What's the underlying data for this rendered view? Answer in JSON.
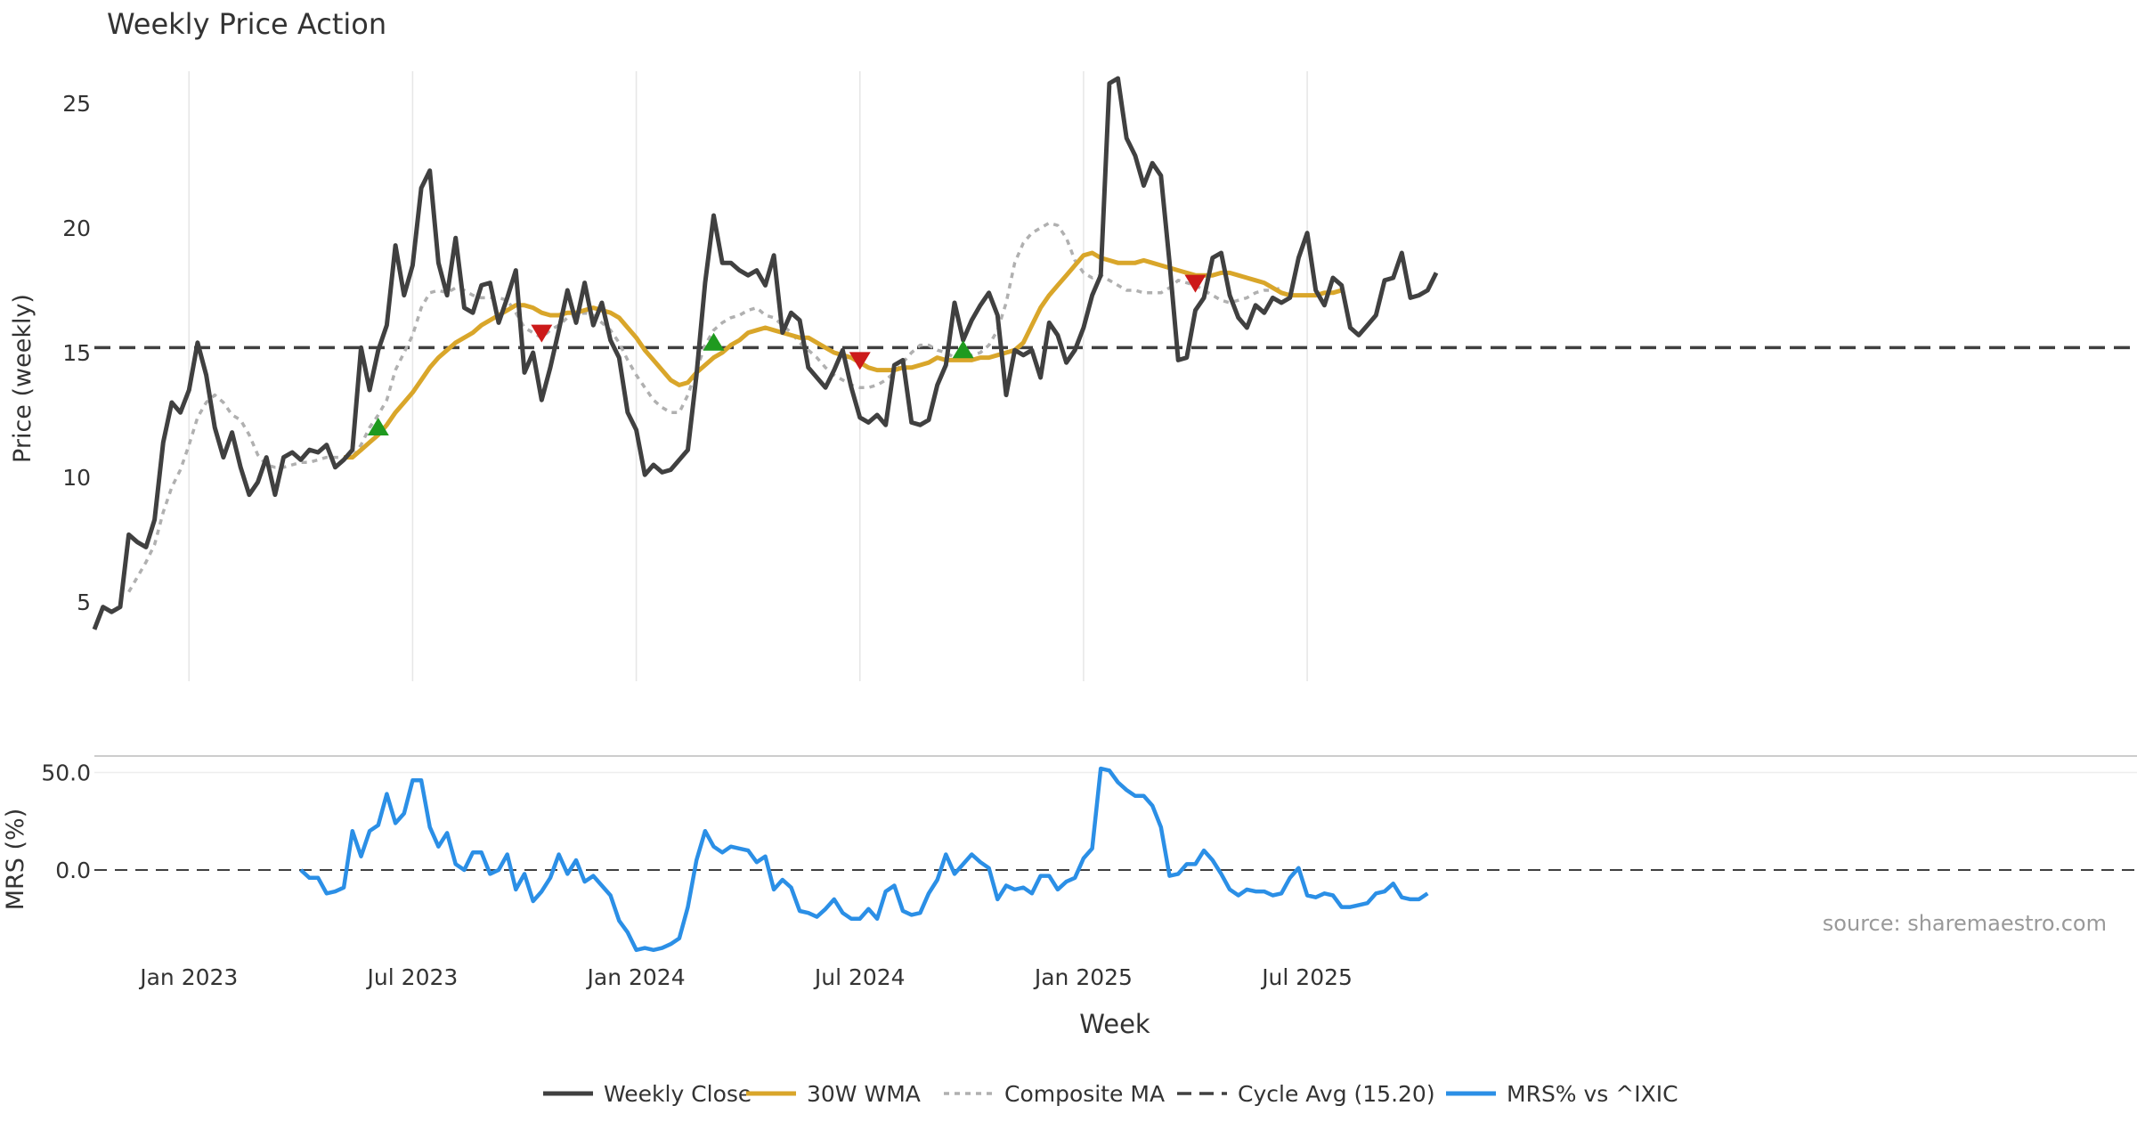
{
  "chart_data": [
    {
      "type": "line",
      "title": "Weekly Price Action",
      "xlabel": "",
      "ylabel": "Price (weekly)",
      "ylim": [
        3,
        27
      ],
      "yticks": [
        5,
        10,
        15,
        20,
        25
      ],
      "x_start": "2022-10-17",
      "x_step_days": 7,
      "series": [
        {
          "name": "Weekly Close",
          "color": "#404040",
          "style": "solid",
          "values": [
            3.9,
            4.8,
            4.6,
            4.8,
            7.7,
            7.4,
            7.2,
            8.3,
            11.4,
            13.0,
            12.6,
            13.5,
            15.4,
            14.1,
            12.0,
            10.8,
            11.8,
            10.4,
            9.3,
            9.8,
            10.8,
            9.3,
            10.8,
            11.0,
            10.7,
            11.1,
            11.0,
            11.3,
            10.4,
            10.7,
            11.1,
            15.2,
            13.5,
            15.1,
            16.1,
            19.3,
            17.3,
            18.5,
            21.6,
            22.3,
            18.6,
            17.3,
            19.6,
            16.8,
            16.6,
            17.7,
            17.8,
            16.2,
            17.2,
            18.3,
            14.2,
            15.0,
            13.1,
            14.4,
            15.9,
            17.5,
            16.2,
            17.8,
            16.1,
            17.0,
            15.5,
            14.8,
            12.6,
            11.9,
            10.1,
            10.5,
            10.2,
            10.3,
            10.7,
            11.1,
            14.1,
            17.8,
            20.5,
            18.6,
            18.6,
            18.3,
            18.1,
            18.3,
            17.7,
            18.9,
            15.8,
            16.6,
            16.3,
            14.4,
            14.0,
            13.6,
            14.3,
            15.1,
            13.6,
            12.4,
            12.2,
            12.5,
            12.1,
            14.5,
            14.7,
            12.2,
            12.1,
            12.3,
            13.7,
            14.5,
            17.0,
            15.5,
            16.3,
            16.9,
            17.4,
            16.5,
            13.3,
            15.1,
            14.9,
            15.1,
            14.0,
            16.2,
            15.7,
            14.6,
            15.1,
            16.0,
            17.3,
            18.1,
            25.8,
            26.0,
            23.6,
            22.9,
            21.7,
            22.6,
            22.1,
            18.6,
            14.7,
            14.8,
            16.7,
            17.2,
            18.8,
            19.0,
            17.3,
            16.4,
            16.0,
            16.9,
            16.6,
            17.2,
            17.0,
            17.2,
            18.8,
            19.8,
            17.5,
            16.9,
            18.0,
            17.7,
            16.0,
            15.7,
            16.1,
            16.5,
            17.9,
            18.0,
            19.0,
            17.2,
            17.3,
            17.5,
            18.2
          ]
        },
        {
          "name": "30W WMA",
          "color": "#d9a62a",
          "style": "solid",
          "start_index": 29,
          "values": [
            10.8,
            10.8,
            11.1,
            11.4,
            11.7,
            12.1,
            12.6,
            13.0,
            13.4,
            13.9,
            14.4,
            14.8,
            15.1,
            15.4,
            15.6,
            15.8,
            16.1,
            16.3,
            16.5,
            16.7,
            16.9,
            16.9,
            16.8,
            16.6,
            16.5,
            16.5,
            16.6,
            16.6,
            16.7,
            16.8,
            16.7,
            16.6,
            16.4,
            16.0,
            15.6,
            15.1,
            14.7,
            14.3,
            13.9,
            13.7,
            13.8,
            14.2,
            14.5,
            14.8,
            15.0,
            15.3,
            15.5,
            15.8,
            15.9,
            16.0,
            15.9,
            15.8,
            15.7,
            15.6,
            15.6,
            15.4,
            15.2,
            15.0,
            14.9,
            14.8,
            14.6,
            14.4,
            14.3,
            14.3,
            14.3,
            14.4,
            14.4,
            14.5,
            14.6,
            14.8,
            14.7,
            14.7,
            14.7,
            14.7,
            14.8,
            14.8,
            14.9,
            15.0,
            15.1,
            15.4,
            16.1,
            16.8,
            17.3,
            17.7,
            18.1,
            18.5,
            18.9,
            19.0,
            18.8,
            18.7,
            18.6,
            18.6,
            18.6,
            18.7,
            18.6,
            18.5,
            18.4,
            18.3,
            18.2,
            18.1,
            18.1,
            18.1,
            18.2,
            18.2,
            18.1,
            18.0,
            17.9,
            17.8,
            17.6,
            17.4,
            17.3,
            17.3,
            17.3,
            17.3,
            17.4,
            17.4,
            17.5
          ]
        },
        {
          "name": "Composite MA",
          "color": "#b0b0b0",
          "style": "dotted",
          "start_index": 4,
          "values": [
            5.4,
            6.0,
            6.6,
            7.3,
            8.6,
            9.6,
            10.3,
            11.3,
            12.4,
            13.0,
            13.3,
            13.0,
            12.5,
            12.3,
            11.7,
            10.9,
            10.5,
            10.4,
            10.4,
            10.5,
            10.6,
            10.6,
            10.7,
            10.8,
            10.8,
            10.8,
            10.8,
            11.3,
            12.0,
            12.5,
            13.1,
            14.3,
            15.0,
            15.7,
            16.8,
            17.4,
            17.5,
            17.4,
            17.6,
            17.5,
            17.3,
            17.2,
            17.2,
            17.2,
            17.1,
            16.6,
            16.0,
            15.8,
            15.6,
            15.9,
            16.1,
            16.4,
            16.5,
            16.6,
            16.5,
            16.2,
            15.9,
            15.4,
            14.7,
            14.1,
            13.6,
            13.1,
            12.8,
            12.6,
            12.6,
            13.3,
            14.3,
            15.3,
            15.9,
            16.2,
            16.4,
            16.5,
            16.7,
            16.8,
            16.5,
            16.4,
            16.1,
            15.8,
            15.4,
            15.1,
            14.8,
            14.4,
            14.1,
            13.9,
            13.7,
            13.6,
            13.6,
            13.7,
            13.9,
            14.2,
            14.6,
            15.0,
            15.3,
            15.3,
            15.1,
            15.0,
            14.8,
            14.8,
            14.9,
            15.0,
            15.3,
            15.9,
            17.0,
            18.6,
            19.4,
            19.8,
            20.0,
            20.2,
            20.1,
            19.6,
            18.7,
            18.2,
            18.0,
            18.1,
            17.9,
            17.7,
            17.5,
            17.5,
            17.4,
            17.4,
            17.4,
            17.6,
            17.9,
            17.8,
            17.7,
            17.5,
            17.3,
            17.1,
            17.0,
            17.1,
            17.2,
            17.4,
            17.5,
            17.5,
            17.6
          ]
        },
        {
          "name": "Cycle Avg (15.20)",
          "color": "#404040",
          "style": "dashed",
          "constant": 15.2
        }
      ],
      "signals": [
        {
          "type": "buy",
          "index": 33,
          "value": 12.0
        },
        {
          "type": "sell",
          "index": 52,
          "value": 15.8
        },
        {
          "type": "buy",
          "index": 72,
          "value": 15.4
        },
        {
          "type": "sell",
          "index": 89,
          "value": 14.7
        },
        {
          "type": "buy",
          "index": 101,
          "value": 15.1
        },
        {
          "type": "sell",
          "index": 128,
          "value": 17.8
        }
      ]
    },
    {
      "type": "line",
      "xlabel": "Week",
      "ylabel": "MRS (%)",
      "ylim": [
        -40,
        60
      ],
      "yticks_labels": [
        "50.0",
        "0.0"
      ],
      "yticks": [
        50,
        0
      ],
      "source_note": "source: sharemaestro.com",
      "x_tick_labels": [
        "Jan 2023",
        "Jul 2023",
        "Jan 2024",
        "Jul 2024",
        "Jan 2025",
        "Jul 2025"
      ],
      "x_tick_index": [
        11,
        37,
        63,
        89,
        115,
        141
      ],
      "series": [
        {
          "name": "MRS% vs ^IXIC",
          "color": "#2b8fe6",
          "style": "solid",
          "start_index": 24,
          "values": [
            0,
            -4,
            -4,
            -12,
            -11,
            -9,
            20,
            7,
            20,
            23,
            39,
            24,
            29,
            46,
            46,
            22,
            12,
            19,
            3,
            0,
            9,
            9,
            -2,
            0,
            8,
            -10,
            -2,
            -16,
            -11,
            -4,
            8,
            -2,
            5,
            -6,
            -3,
            -8,
            -13,
            -26,
            -32,
            -41,
            -40,
            -41,
            -40,
            -38,
            -35,
            -19,
            5,
            20,
            12,
            9,
            12,
            11,
            10,
            4,
            7,
            -10,
            -5,
            -9,
            -21,
            -22,
            -24,
            -20,
            -15,
            -22,
            -25,
            -25,
            -20,
            -25,
            -11,
            -8,
            -21,
            -23,
            -22,
            -12,
            -5,
            8,
            -2,
            3,
            8,
            4,
            1,
            -15,
            -8,
            -10,
            -9,
            -12,
            -3,
            -3,
            -10,
            -6,
            -4,
            6,
            11,
            52,
            51,
            45,
            41,
            38,
            38,
            33,
            22,
            -3,
            -2,
            3,
            3,
            10,
            5,
            -2,
            -10,
            -13,
            -10,
            -11,
            -11,
            -13,
            -12,
            -4,
            1,
            -13,
            -14,
            -12,
            -13,
            -19,
            -19,
            -18,
            -17,
            -12,
            -11,
            -7,
            -14,
            -15,
            -15,
            -12
          ]
        }
      ]
    }
  ],
  "legend": [
    {
      "label": "Weekly Close",
      "color": "#404040",
      "style": "solid"
    },
    {
      "label": "30W WMA",
      "color": "#d9a62a",
      "style": "solid"
    },
    {
      "label": "Composite MA",
      "color": "#b0b0b0",
      "style": "dotted"
    },
    {
      "label": "Cycle Avg (15.20)",
      "color": "#404040",
      "style": "dashed"
    },
    {
      "label": "MRS% vs ^IXIC",
      "color": "#2b8fe6",
      "style": "solid"
    }
  ]
}
